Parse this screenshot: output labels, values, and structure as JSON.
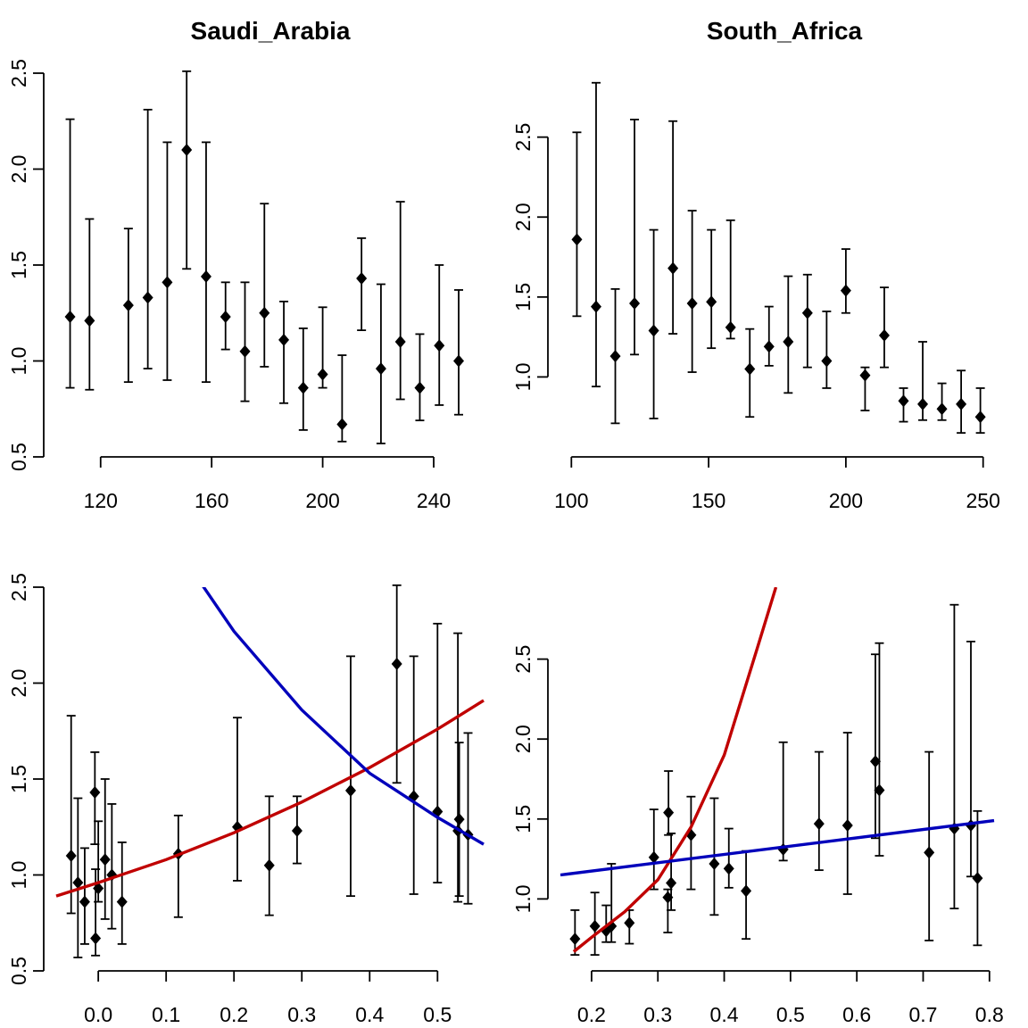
{
  "colors": {
    "red_curve": "#c00000",
    "blue_curve": "#0000bb"
  },
  "chart_data": [
    {
      "type": "scatter",
      "title": "Saudi_Arabia",
      "xlabel": "",
      "ylabel": "",
      "xlim": [
        104,
        258
      ],
      "ylim": [
        0.5,
        2.5
      ],
      "xticks": [
        120,
        160,
        200,
        240
      ],
      "yticks": [
        0.5,
        1.0,
        1.5,
        2.0,
        2.5
      ],
      "ytick_labels": [
        "0.5",
        "1.0",
        "1.5",
        "2.0",
        "2.5"
      ],
      "xtick_labels": [
        "120",
        "160",
        "200",
        "240"
      ],
      "points": [
        {
          "x": 109,
          "y": 1.23,
          "lo": 0.86,
          "hi": 2.26
        },
        {
          "x": 116,
          "y": 1.21,
          "lo": 0.85,
          "hi": 1.74
        },
        {
          "x": 130,
          "y": 1.29,
          "lo": 0.89,
          "hi": 1.69
        },
        {
          "x": 137,
          "y": 1.33,
          "lo": 0.96,
          "hi": 2.31
        },
        {
          "x": 144,
          "y": 1.41,
          "lo": 0.9,
          "hi": 2.14
        },
        {
          "x": 151,
          "y": 2.1,
          "lo": 1.48,
          "hi": 2.51
        },
        {
          "x": 158,
          "y": 1.44,
          "lo": 0.89,
          "hi": 2.14
        },
        {
          "x": 165,
          "y": 1.23,
          "lo": 1.06,
          "hi": 1.41
        },
        {
          "x": 172,
          "y": 1.05,
          "lo": 0.79,
          "hi": 1.41
        },
        {
          "x": 179,
          "y": 1.25,
          "lo": 0.97,
          "hi": 1.82
        },
        {
          "x": 186,
          "y": 1.11,
          "lo": 0.78,
          "hi": 1.31
        },
        {
          "x": 193,
          "y": 0.86,
          "lo": 0.64,
          "hi": 1.17
        },
        {
          "x": 200,
          "y": 0.93,
          "lo": 0.86,
          "hi": 1.28
        },
        {
          "x": 207,
          "y": 0.67,
          "lo": 0.58,
          "hi": 1.03
        },
        {
          "x": 214,
          "y": 1.43,
          "lo": 1.16,
          "hi": 1.64
        },
        {
          "x": 221,
          "y": 0.96,
          "lo": 0.57,
          "hi": 1.4
        },
        {
          "x": 228,
          "y": 1.1,
          "lo": 0.8,
          "hi": 1.83
        },
        {
          "x": 235,
          "y": 0.86,
          "lo": 0.69,
          "hi": 1.14
        },
        {
          "x": 242,
          "y": 1.08,
          "lo": 0.77,
          "hi": 1.5
        },
        {
          "x": 249,
          "y": 1.0,
          "lo": 0.72,
          "hi": 1.37
        }
      ]
    },
    {
      "type": "scatter",
      "title": "South_Africa",
      "xlabel": "",
      "ylabel": "",
      "xlim": [
        96,
        254
      ],
      "ylim": [
        0.5,
        2.9
      ],
      "xticks": [
        100,
        150,
        200,
        250
      ],
      "yticks": [
        1.0,
        1.5,
        2.0,
        2.5
      ],
      "ytick_labels": [
        "1.0",
        "1.5",
        "2.0",
        "2.5"
      ],
      "xtick_labels": [
        "100",
        "150",
        "200",
        "250"
      ],
      "points": [
        {
          "x": 102,
          "y": 1.86,
          "lo": 1.38,
          "hi": 2.53
        },
        {
          "x": 109,
          "y": 1.44,
          "lo": 0.94,
          "hi": 2.84
        },
        {
          "x": 116,
          "y": 1.13,
          "lo": 0.71,
          "hi": 1.55
        },
        {
          "x": 123,
          "y": 1.46,
          "lo": 1.14,
          "hi": 2.61
        },
        {
          "x": 130,
          "y": 1.29,
          "lo": 0.74,
          "hi": 1.92
        },
        {
          "x": 137,
          "y": 1.68,
          "lo": 1.27,
          "hi": 2.6
        },
        {
          "x": 144,
          "y": 1.46,
          "lo": 1.03,
          "hi": 2.04
        },
        {
          "x": 151,
          "y": 1.47,
          "lo": 1.18,
          "hi": 1.92
        },
        {
          "x": 158,
          "y": 1.31,
          "lo": 1.24,
          "hi": 1.98
        },
        {
          "x": 165,
          "y": 1.05,
          "lo": 0.75,
          "hi": 1.3
        },
        {
          "x": 172,
          "y": 1.19,
          "lo": 1.07,
          "hi": 1.44
        },
        {
          "x": 179,
          "y": 1.22,
          "lo": 0.9,
          "hi": 1.63
        },
        {
          "x": 186,
          "y": 1.4,
          "lo": 1.06,
          "hi": 1.64
        },
        {
          "x": 193,
          "y": 1.1,
          "lo": 0.93,
          "hi": 1.41
        },
        {
          "x": 200,
          "y": 1.54,
          "lo": 1.4,
          "hi": 1.8
        },
        {
          "x": 207,
          "y": 1.01,
          "lo": 0.79,
          "hi": 1.06
        },
        {
          "x": 214,
          "y": 1.26,
          "lo": 1.06,
          "hi": 1.56
        },
        {
          "x": 221,
          "y": 0.85,
          "lo": 0.72,
          "hi": 0.93
        },
        {
          "x": 228,
          "y": 0.83,
          "lo": 0.73,
          "hi": 1.22
        },
        {
          "x": 235,
          "y": 0.8,
          "lo": 0.73,
          "hi": 0.96
        },
        {
          "x": 242,
          "y": 0.83,
          "lo": 0.65,
          "hi": 1.04
        },
        {
          "x": 249,
          "y": 0.75,
          "lo": 0.65,
          "hi": 0.93
        }
      ]
    },
    {
      "type": "scatter",
      "title": "",
      "xlabel": "",
      "ylabel": "",
      "xlim": [
        -0.062,
        0.568
      ],
      "ylim": [
        0.5,
        2.5
      ],
      "xticks": [
        0.0,
        0.1,
        0.2,
        0.3,
        0.4,
        0.5
      ],
      "yticks": [
        0.5,
        1.0,
        1.5,
        2.0,
        2.5
      ],
      "ytick_labels": [
        "0.5",
        "1.0",
        "1.5",
        "2.0",
        "2.5"
      ],
      "xtick_labels": [
        "0.0",
        "0.1",
        "0.2",
        "0.3",
        "0.4",
        "0.5"
      ],
      "points": [
        {
          "x": -0.04,
          "y": 1.1,
          "lo": 0.8,
          "hi": 1.83
        },
        {
          "x": -0.03,
          "y": 0.96,
          "lo": 0.57,
          "hi": 1.4
        },
        {
          "x": -0.02,
          "y": 0.86,
          "lo": 0.64,
          "hi": 1.14
        },
        {
          "x": -0.005,
          "y": 1.43,
          "lo": 1.16,
          "hi": 1.64
        },
        {
          "x": -0.004,
          "y": 0.67,
          "lo": 0.58,
          "hi": 1.03
        },
        {
          "x": 0.0,
          "y": 0.93,
          "lo": 0.86,
          "hi": 1.28
        },
        {
          "x": 0.01,
          "y": 1.08,
          "lo": 0.77,
          "hi": 1.5
        },
        {
          "x": 0.02,
          "y": 1.0,
          "lo": 0.72,
          "hi": 1.37
        },
        {
          "x": 0.035,
          "y": 0.86,
          "lo": 0.64,
          "hi": 1.17
        },
        {
          "x": 0.118,
          "y": 1.11,
          "lo": 0.78,
          "hi": 1.31
        },
        {
          "x": 0.205,
          "y": 1.25,
          "lo": 0.97,
          "hi": 1.82
        },
        {
          "x": 0.252,
          "y": 1.05,
          "lo": 0.79,
          "hi": 1.41
        },
        {
          "x": 0.293,
          "y": 1.23,
          "lo": 1.06,
          "hi": 1.41
        },
        {
          "x": 0.372,
          "y": 1.44,
          "lo": 0.89,
          "hi": 2.14
        },
        {
          "x": 0.44,
          "y": 2.1,
          "lo": 1.48,
          "hi": 2.51
        },
        {
          "x": 0.465,
          "y": 1.41,
          "lo": 0.9,
          "hi": 2.14
        },
        {
          "x": 0.5,
          "y": 1.33,
          "lo": 0.96,
          "hi": 2.31
        },
        {
          "x": 0.53,
          "y": 1.23,
          "lo": 0.86,
          "hi": 2.26
        },
        {
          "x": 0.532,
          "y": 1.29,
          "lo": 0.89,
          "hi": 1.69
        },
        {
          "x": 0.545,
          "y": 1.21,
          "lo": 0.85,
          "hi": 1.74
        }
      ],
      "curves": [
        {
          "color": "red",
          "x": [
            -0.062,
            0.0,
            0.1,
            0.2,
            0.3,
            0.4,
            0.5,
            0.568
          ],
          "y": [
            0.89,
            0.96,
            1.08,
            1.22,
            1.38,
            1.56,
            1.76,
            1.91
          ]
        },
        {
          "color": "blue",
          "x": [
            0.138,
            0.2,
            0.3,
            0.4,
            0.5,
            0.568
          ],
          "y": [
            2.59,
            2.27,
            1.86,
            1.53,
            1.3,
            1.16
          ]
        }
      ]
    },
    {
      "type": "scatter",
      "title": "",
      "xlabel": "",
      "ylabel": "",
      "xlim": [
        0.153,
        0.807
      ],
      "ylim": [
        0.55,
        2.95
      ],
      "xticks": [
        0.2,
        0.3,
        0.4,
        0.5,
        0.6,
        0.7,
        0.8
      ],
      "yticks": [
        1.0,
        1.5,
        2.0,
        2.5
      ],
      "ytick_labels": [
        "1.0",
        "1.5",
        "2.0",
        "2.5"
      ],
      "xtick_labels": [
        "0.2",
        "0.3",
        "0.4",
        "0.5",
        "0.6",
        "0.7",
        "0.8"
      ],
      "points": [
        {
          "x": 0.175,
          "y": 0.75,
          "lo": 0.65,
          "hi": 0.93
        },
        {
          "x": 0.205,
          "y": 0.83,
          "lo": 0.65,
          "hi": 1.04
        },
        {
          "x": 0.222,
          "y": 0.8,
          "lo": 0.73,
          "hi": 0.96
        },
        {
          "x": 0.23,
          "y": 0.83,
          "lo": 0.73,
          "hi": 1.22
        },
        {
          "x": 0.257,
          "y": 0.85,
          "lo": 0.72,
          "hi": 0.93
        },
        {
          "x": 0.294,
          "y": 1.26,
          "lo": 1.06,
          "hi": 1.56
        },
        {
          "x": 0.315,
          "y": 1.01,
          "lo": 0.79,
          "hi": 1.06
        },
        {
          "x": 0.316,
          "y": 1.54,
          "lo": 1.4,
          "hi": 1.8
        },
        {
          "x": 0.32,
          "y": 1.1,
          "lo": 0.93,
          "hi": 1.41
        },
        {
          "x": 0.35,
          "y": 1.4,
          "lo": 1.06,
          "hi": 1.64
        },
        {
          "x": 0.385,
          "y": 1.22,
          "lo": 0.9,
          "hi": 1.63
        },
        {
          "x": 0.407,
          "y": 1.19,
          "lo": 1.07,
          "hi": 1.44
        },
        {
          "x": 0.433,
          "y": 1.05,
          "lo": 0.75,
          "hi": 1.3
        },
        {
          "x": 0.489,
          "y": 1.31,
          "lo": 1.24,
          "hi": 1.98
        },
        {
          "x": 0.543,
          "y": 1.47,
          "lo": 1.18,
          "hi": 1.92
        },
        {
          "x": 0.586,
          "y": 1.46,
          "lo": 1.03,
          "hi": 2.04
        },
        {
          "x": 0.628,
          "y": 1.86,
          "lo": 1.38,
          "hi": 2.53
        },
        {
          "x": 0.634,
          "y": 1.68,
          "lo": 1.27,
          "hi": 2.6
        },
        {
          "x": 0.709,
          "y": 1.29,
          "lo": 0.74,
          "hi": 1.92
        },
        {
          "x": 0.747,
          "y": 1.44,
          "lo": 0.94,
          "hi": 2.84
        },
        {
          "x": 0.772,
          "y": 1.46,
          "lo": 1.14,
          "hi": 2.61
        },
        {
          "x": 0.782,
          "y": 1.13,
          "lo": 0.71,
          "hi": 1.55
        }
      ],
      "curves": [
        {
          "color": "red",
          "x": [
            0.173,
            0.2,
            0.25,
            0.3,
            0.35,
            0.4,
            0.45,
            0.478
          ],
          "y": [
            0.67,
            0.76,
            0.92,
            1.12,
            1.45,
            1.9,
            2.57,
            2.95
          ]
        },
        {
          "color": "blue",
          "x": [
            0.153,
            0.807
          ],
          "y": [
            1.15,
            1.49
          ]
        }
      ]
    }
  ]
}
